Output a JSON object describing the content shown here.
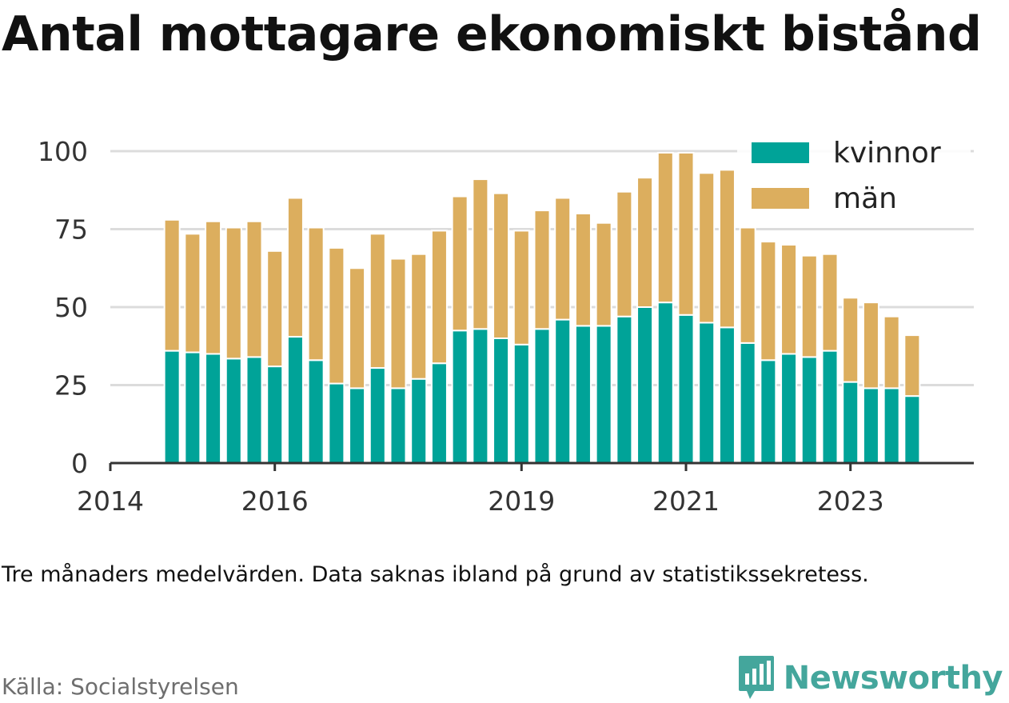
{
  "title": "Antal mottagare ekonomiskt bistånd",
  "subtitle": "Tre månaders medelvärden. Data saknas ibland på grund av statistikssekretess.",
  "source": "Källa: Socialstyrelsen",
  "brand": "Newsworthy",
  "colors": {
    "women": "#00a398",
    "men": "#dcae5e",
    "brand": "#44a69c"
  },
  "chart_data": {
    "type": "bar",
    "stacked": true,
    "xlim": [
      2014,
      2024.5
    ],
    "ylim": [
      0,
      100
    ],
    "yticks": [
      0,
      25,
      50,
      75,
      100
    ],
    "xticks": [
      2014,
      2016,
      2019,
      2021,
      2023
    ],
    "legend_position": "top-right",
    "grid": true,
    "x": [
      2014.75,
      2015.0,
      2015.25,
      2015.5,
      2015.75,
      2016.0,
      2016.25,
      2016.5,
      2016.75,
      2017.0,
      2017.25,
      2017.5,
      2017.75,
      2018.0,
      2018.25,
      2018.5,
      2018.75,
      2019.0,
      2019.25,
      2019.5,
      2019.75,
      2020.0,
      2020.25,
      2020.5,
      2020.75,
      2021.0,
      2021.25,
      2021.5,
      2021.75,
      2022.0,
      2022.25,
      2022.5,
      2022.75,
      2023.0,
      2023.25,
      2023.5,
      2023.75,
      2024.0,
      2024.25
    ],
    "series": [
      {
        "name": "kvinnor",
        "values": [
          36,
          35.5,
          35,
          33.5,
          34,
          31,
          40.5,
          33,
          25.5,
          24,
          30.5,
          24,
          27,
          32,
          42.5,
          43,
          40,
          38,
          43,
          46,
          44,
          44,
          47,
          50,
          51.5,
          47.5,
          45,
          43.5,
          38.5,
          33,
          35,
          34,
          36,
          26,
          24,
          24,
          21.5,
          null,
          null
        ]
      },
      {
        "name": "män",
        "values": [
          42,
          38,
          42.5,
          42,
          43.5,
          37,
          44.5,
          42.5,
          43.5,
          38.5,
          43,
          41.5,
          40,
          42.5,
          43,
          48,
          46.5,
          36.5,
          38,
          39,
          36,
          33,
          40,
          41.5,
          48,
          52,
          48,
          50.5,
          37,
          38,
          35,
          32.5,
          31,
          27,
          27.5,
          23,
          19.5,
          null,
          null
        ]
      }
    ]
  }
}
